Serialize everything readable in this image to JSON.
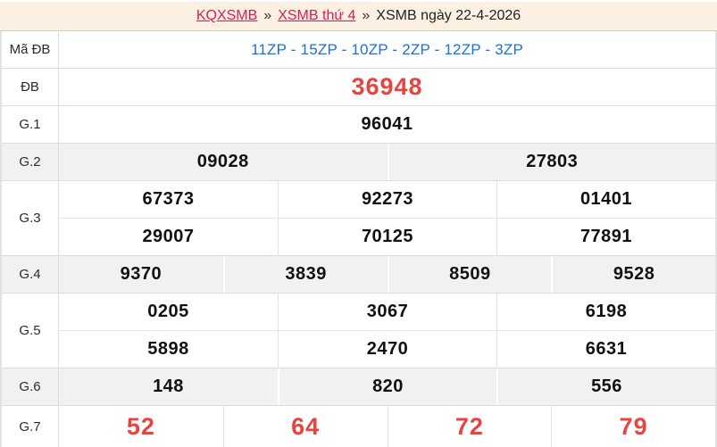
{
  "breadcrumb": {
    "links": [
      {
        "label": "KQXSMB"
      },
      {
        "label": "XSMB thứ 4"
      }
    ],
    "separator": "»",
    "current": "XSMB ngày 22-4-2026"
  },
  "table": {
    "rows": [
      {
        "label": "Mã ĐB",
        "cells": [
          [
            "11ZP - 15ZP - 10ZP - 2ZP - 12ZP - 3ZP"
          ]
        ]
      },
      {
        "label": "ĐB",
        "cells": [
          [
            "36948"
          ]
        ]
      },
      {
        "label": "G.1",
        "cells": [
          [
            "96041"
          ]
        ]
      },
      {
        "label": "G.2",
        "cells": [
          [
            "09028",
            "27803"
          ]
        ]
      },
      {
        "label": "G.3",
        "cells": [
          [
            "67373",
            "92273",
            "01401"
          ],
          [
            "29007",
            "70125",
            "77891"
          ]
        ]
      },
      {
        "label": "G.4",
        "cells": [
          [
            "9370",
            "3839",
            "8509",
            "9528"
          ]
        ]
      },
      {
        "label": "G.5",
        "cells": [
          [
            "0205",
            "3067",
            "6198"
          ],
          [
            "5898",
            "2470",
            "6631"
          ]
        ]
      },
      {
        "label": "G.6",
        "cells": [
          [
            "148",
            "820",
            "556"
          ]
        ]
      },
      {
        "label": "G.7",
        "cells": [
          [
            "52",
            "64",
            "72",
            "79"
          ]
        ]
      }
    ]
  },
  "colors": {
    "accent_red": "#e8433f",
    "link_crimson": "#dd1b50",
    "code_blue": "#1e6fd6",
    "header_bg": "#fcf0e3",
    "shaded_row_bg": "#f1f1f1",
    "border": "#dcdcdc"
  }
}
